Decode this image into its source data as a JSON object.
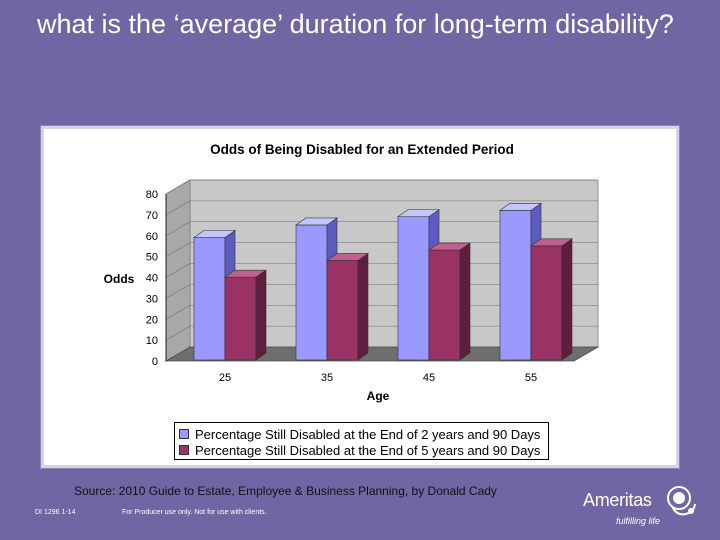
{
  "slide": {
    "title": "what is the ‘average’ duration for long-term disability?",
    "source": "Source: 2010 Guide to Estate, Employee & Business Planning, by Donald Cady",
    "footer_code": "DI 1296 1-14",
    "footer_note": "For Producer use only. Not for use with clients.",
    "brand_name": "Ameritas",
    "brand_tagline": "fulfilling life",
    "background_color": "#7265a3"
  },
  "chart_data": {
    "type": "bar",
    "title": "Odds of Being Disabled for an Extended Period",
    "xlabel": "Age",
    "ylabel": "Odds",
    "categories": [
      "25",
      "35",
      "45",
      "55"
    ],
    "y_ticks": [
      "0",
      "10",
      "20",
      "30",
      "40",
      "50",
      "60",
      "70",
      "80"
    ],
    "ylim": [
      0,
      80
    ],
    "series": [
      {
        "name": "Percentage Still Disabled at the End of 2 years and 90 Days",
        "values": [
          63,
          69,
          73,
          76
        ],
        "color": "#9999ff",
        "side_color": "#5c5cc0",
        "top_color": "#c4c4ff"
      },
      {
        "name": "Percentage Still Disabled at the End of 5 years and 90 Days",
        "values": [
          44,
          52,
          57,
          59
        ],
        "color": "#993366",
        "side_color": "#5e1f3e",
        "top_color": "#c06090"
      }
    ],
    "legend_position": "bottom"
  }
}
